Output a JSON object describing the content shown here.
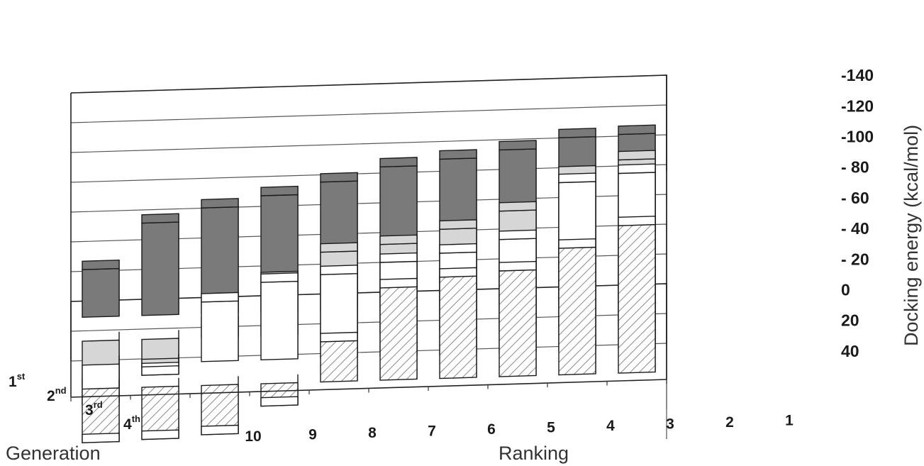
{
  "chart_data": {
    "type": "bar",
    "variant": "3d-grouped-bar",
    "xlabel": "Ranking",
    "depth_label": "Generation",
    "ylabel": "Docking energy  (kcal/mol)",
    "rankings": [
      "10",
      "9",
      "8",
      "7",
      "6",
      "5",
      "4",
      "3",
      "2",
      "1"
    ],
    "y_ticks": [
      "-140",
      "-120",
      "-100",
      "- 80",
      "- 60",
      "- 40",
      "- 20",
      "0",
      "20",
      "40"
    ],
    "y_tick_values": [
      -140,
      -120,
      -100,
      -80,
      -60,
      -40,
      -20,
      0,
      20,
      40
    ],
    "ylim": [
      40,
      -140
    ],
    "grid": true,
    "series": [
      {
        "generation": "4",
        "suffix": "th",
        "fill": "#7a7a7a",
        "values": [
          -32,
          -62,
          -71,
          -78,
          -86,
          -95,
          -99,
          -104,
          -111,
          -112
        ]
      },
      {
        "generation": "3",
        "suffix": "rd",
        "fill": "#d6d6d6",
        "values": [
          31,
          19,
          -8,
          -37,
          -55,
          -59,
          -68,
          -79,
          -102,
          -111
        ]
      },
      {
        "generation": "2",
        "suffix": "nd",
        "fill": "#ffffff",
        "values": [
          26,
          8,
          -40,
          -52,
          -56,
          -63,
          -68,
          -76,
          -113,
          -118
        ]
      },
      {
        "generation": "1",
        "suffix": "st",
        "fill": "#ffffff",
        "hatched": true,
        "values": [
          36,
          35,
          33,
          15,
          -27,
          -62,
          -68,
          -71,
          -85,
          -99
        ]
      }
    ]
  }
}
